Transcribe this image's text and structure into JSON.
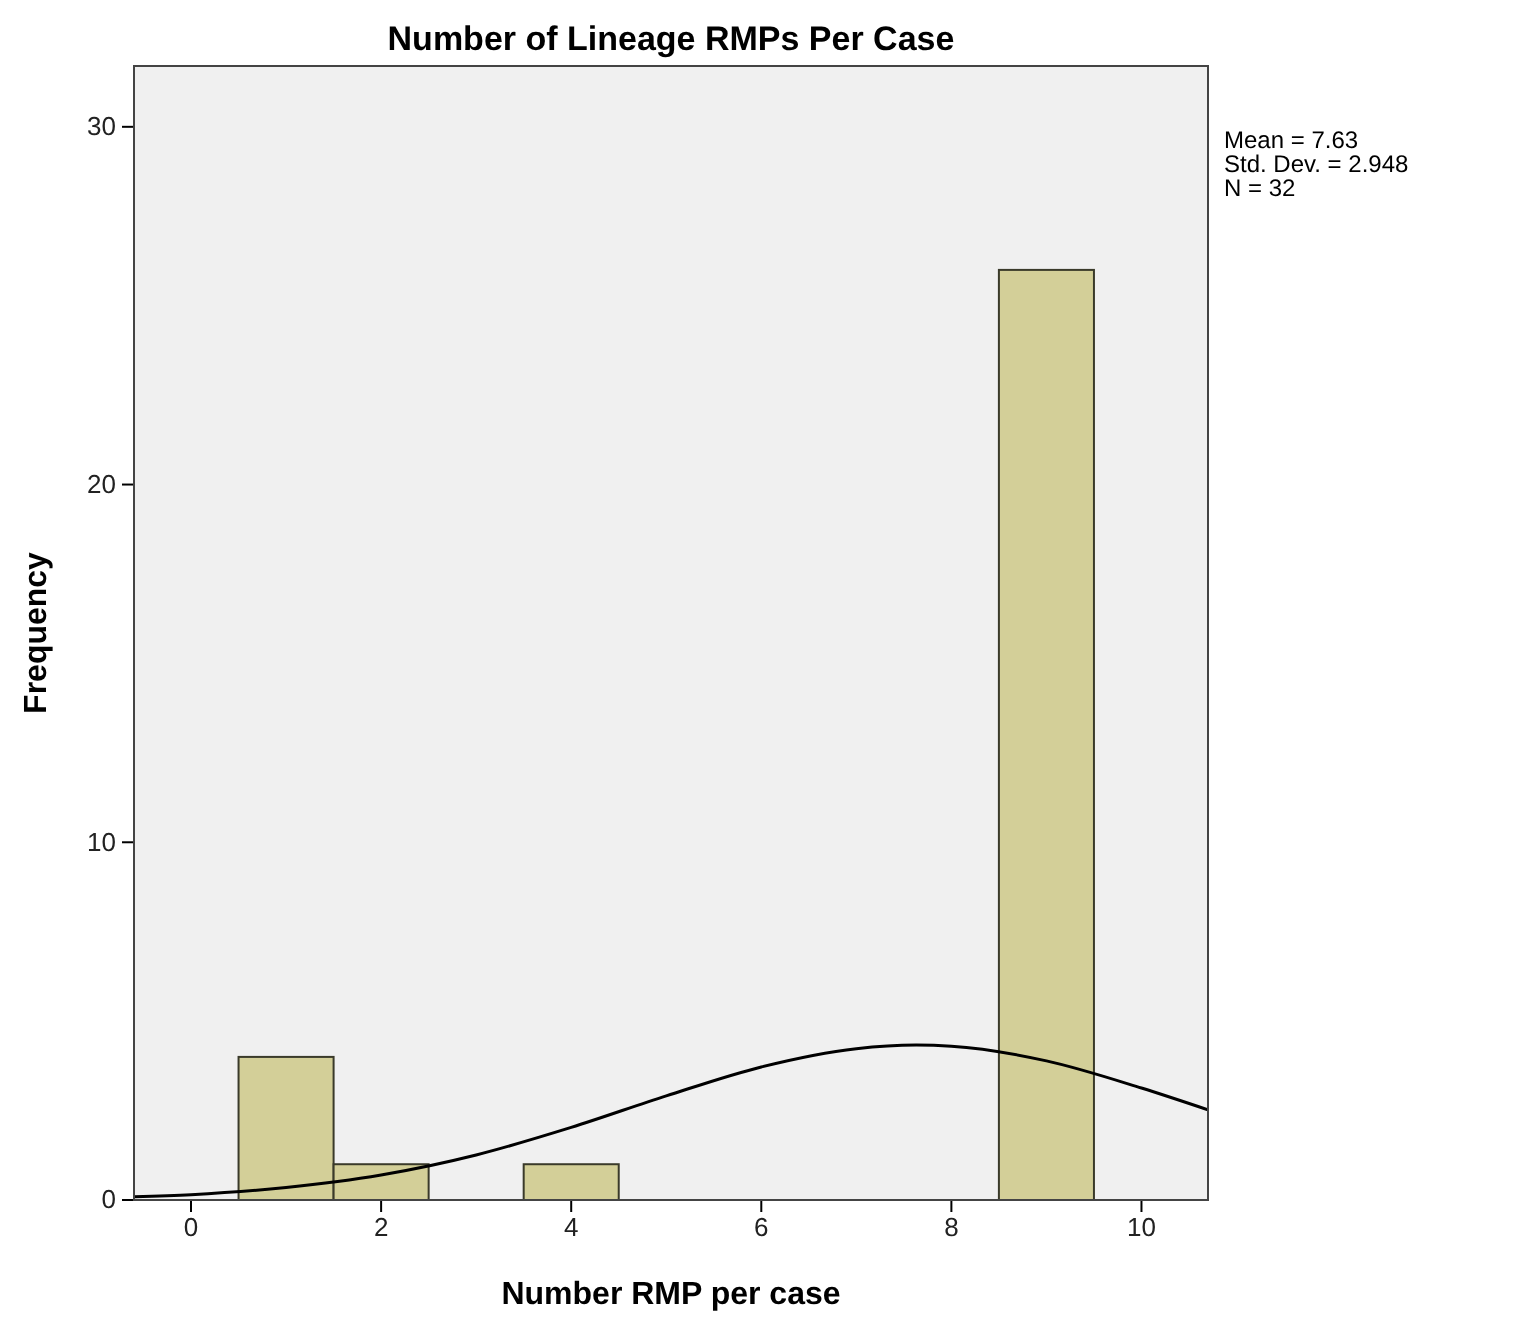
{
  "chart_data": {
    "type": "histogram",
    "title": "Number of Lineage RMPs Per Case",
    "xlabel": "Number RMP per case",
    "ylabel": "Frequency",
    "bins": [
      0.5,
      1.5,
      2.5,
      3.5,
      4.5,
      5.5,
      6.5,
      7.5,
      8.5,
      9.5
    ],
    "series": [
      {
        "color": "#d3cf98",
        "values": [
          4,
          1,
          0,
          1,
          0,
          0,
          0,
          0,
          26
        ]
      },
      {
        "type": "line",
        "color": "#000000",
        "x": [
          -0.6,
          0,
          1,
          2,
          3,
          4,
          5,
          6,
          7,
          7.63,
          8,
          9,
          10,
          10.7
        ],
        "values": [
          0.09,
          0.15,
          0.35,
          0.7,
          1.26,
          2.03,
          2.91,
          3.72,
          4.23,
          4.33,
          4.3,
          3.89,
          3.13,
          2.52
        ]
      }
    ],
    "xlim": [
      -0.6,
      10.7
    ],
    "ylim": [
      0,
      31.7
    ],
    "xticks": [
      0,
      2,
      4,
      6,
      8,
      10
    ],
    "yticks": [
      0,
      10,
      20,
      30
    ],
    "annotations": [
      "Mean = 7.63",
      "Std. Dev. = 2.948",
      "N = 32"
    ]
  }
}
